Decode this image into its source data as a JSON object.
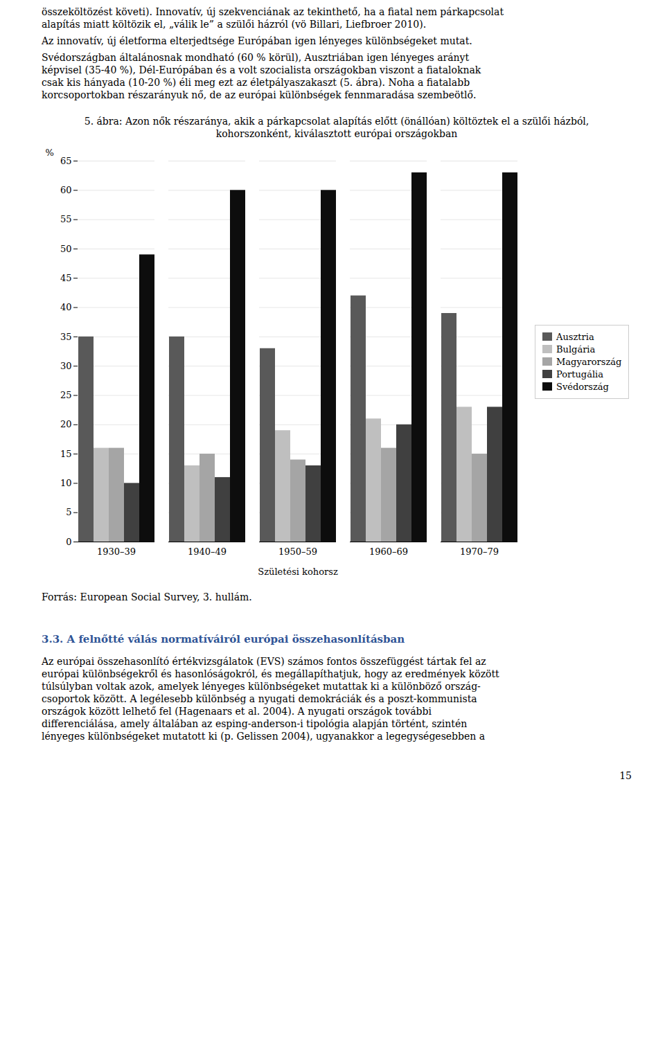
{
  "page_text": {
    "paragraphs": [
      [
        "összeköltözést követi). Innovatív, új szekvenciának az tekinthető, ha a fiatal nem párkapcsolat",
        "alapítás miatt költözik el, „válik le” a szülői házról (vö Billari, Liefbroer 2010)."
      ],
      [
        "Az innovatív, új életforma elterjedtsége Európában igen lényeges különbségeket mutat."
      ],
      [
        "Svédországban általánosnak mondható (60 % körül), Ausztriában igen lényeges arányt",
        "képvisel (35-40 %), Dél-Európában és a volt szocialista országokban viszont a fiataloknak",
        "csak kis hányada (10-20 %) éli meg ezt az életpályaszakaszt (5. ábra). Noha a fiatalabb",
        "korcsoportokban részarányuk nő, de az európai különbségek fennmaradása szembeötlő."
      ]
    ],
    "source": "Forrás: European Social Survey, 3. hullám.",
    "section_title": "3.3. A felnőtté válás normatíváiról európai összehasonlításban",
    "closing_paragraph": [
      "Az európai összehasonlító értékvizsgálatok (EVS) számos fontos összefüggést tártak fel az",
      "európai különbségekről és hasonlóságokról, és megállapíthatjuk, hogy az eredmények között",
      "túlsúlyban voltak azok, amelyek lényeges különbségeket mutattak ki a különböző ország-",
      "csoportok között. A legélesebb különbség a nyugati demokráciák és a poszt-kommunista",
      "országok között lelhető fel (Hagenaars et al. 2004). A nyugati országok további",
      "differenciálása, amely általában az esping-anderson-i tipológia alapján történt, szintén",
      "lényeges különbségeket mutatott ki (p. Gelissen 2004), ugyanakkor a legegységesebben a"
    ],
    "page_number": "15"
  },
  "chart_data": {
    "type": "bar",
    "title": "5. ábra: Azon nők részaránya, akik a párkapcsolat alapítás előtt (önállóan) költöztek el a szülői házból,\nkohorszonként, kiválasztott európai országokban",
    "xlabel": "Születési kohorsz",
    "ylabel": "%",
    "categories": [
      "1930–39",
      "1940–49",
      "1950–59",
      "1960–69",
      "1970–79"
    ],
    "series": [
      {
        "name": "Ausztria",
        "color": "#595959",
        "values": [
          35,
          35,
          33,
          42,
          39
        ]
      },
      {
        "name": "Bulgária",
        "color": "#bfbfbf",
        "values": [
          16,
          13,
          19,
          21,
          23
        ]
      },
      {
        "name": "Magyarország",
        "color": "#a5a5a5",
        "values": [
          16,
          15,
          14,
          16,
          15
        ]
      },
      {
        "name": "Portugália",
        "color": "#404040",
        "values": [
          10,
          11,
          13,
          20,
          23
        ]
      },
      {
        "name": "Svédország",
        "color": "#0d0d0d",
        "values": [
          49,
          60,
          60,
          63,
          63
        ]
      }
    ],
    "ylim": [
      0,
      65
    ],
    "yticks": [
      0,
      5,
      10,
      15,
      20,
      25,
      30,
      35,
      40,
      45,
      50,
      55,
      60,
      65
    ],
    "grid": true,
    "legend": "right"
  }
}
